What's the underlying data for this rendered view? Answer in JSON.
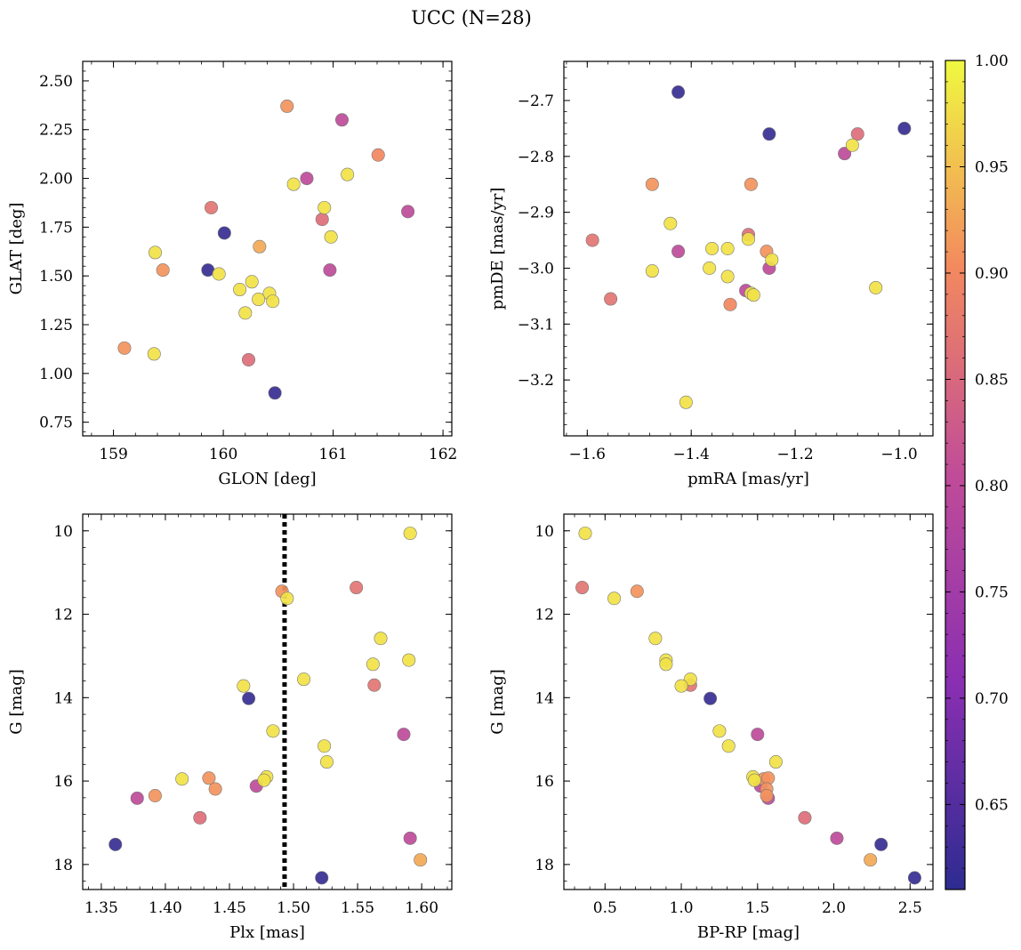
{
  "figure": {
    "title": "UCC (N=28)",
    "colors": {
      "palette": "plasma",
      "marker_edge": "#777777",
      "vline": "#000000"
    }
  },
  "colorbar": {
    "label": "",
    "range": [
      0.61,
      1.0
    ],
    "ticks": [
      0.65,
      0.7,
      0.75,
      0.8,
      0.85,
      0.9,
      0.95,
      1.0
    ],
    "tick_labels": [
      "0.65",
      "0.70",
      "0.75",
      "0.80",
      "0.85",
      "0.90",
      "0.95",
      "1.00"
    ]
  },
  "chart_data": [
    {
      "id": "glon-glat",
      "type": "scatter",
      "xlabel": "GLON [deg]",
      "ylabel": "GLAT [deg]",
      "xlim": [
        158.72,
        162.08
      ],
      "ylim": [
        0.68,
        2.6
      ],
      "invert_y": false,
      "xticks": [
        159,
        160,
        161,
        162
      ],
      "xtick_labels": [
        "159",
        "160",
        "161",
        "162"
      ],
      "yticks": [
        0.75,
        1.0,
        1.25,
        1.5,
        1.75,
        2.0,
        2.25,
        2.5
      ],
      "ytick_labels": [
        "0.75",
        "1.00",
        "1.25",
        "1.50",
        "1.75",
        "2.00",
        "2.25",
        "2.50"
      ],
      "x": [
        160.58,
        161.08,
        161.41,
        160.76,
        161.13,
        160.64,
        159.89,
        160.92,
        160.01,
        160.9,
        160.98,
        160.33,
        159.38,
        159.45,
        159.86,
        159.96,
        160.26,
        160.15,
        160.42,
        160.32,
        160.45,
        160.2,
        160.97,
        159.1,
        159.37,
        160.23,
        160.47,
        161.68
      ],
      "y": [
        2.37,
        2.3,
        2.12,
        2.0,
        2.02,
        1.97,
        1.85,
        1.85,
        1.72,
        1.79,
        1.7,
        1.65,
        1.62,
        1.53,
        1.53,
        1.51,
        1.47,
        1.43,
        1.41,
        1.38,
        1.37,
        1.31,
        1.53,
        1.13,
        1.1,
        1.07,
        0.9,
        1.83
      ],
      "c": [
        0.91,
        0.8,
        0.9,
        0.8,
        0.98,
        0.98,
        0.87,
        0.98,
        0.62,
        0.86,
        0.98,
        0.93,
        0.98,
        0.91,
        0.62,
        0.98,
        0.98,
        0.98,
        0.98,
        0.98,
        0.98,
        0.98,
        0.8,
        0.91,
        0.98,
        0.86,
        0.62,
        0.8
      ],
      "vline": null
    },
    {
      "id": "pmra-pmde",
      "type": "scatter",
      "xlabel": "pmRA [mas/yr]",
      "ylabel": "pmDE [mas/yr]",
      "xlim": [
        -1.645,
        -0.935
      ],
      "ylim": [
        -3.3,
        -2.63
      ],
      "invert_y": false,
      "xticks": [
        -1.6,
        -1.4,
        -1.2,
        -1.0
      ],
      "xtick_labels": [
        "−1.6",
        "−1.4",
        "−1.2",
        "−1.0"
      ],
      "yticks": [
        -3.2,
        -3.1,
        -3.0,
        -2.9,
        -2.8,
        -2.7
      ],
      "ytick_labels": [
        "−3.2",
        "−3.1",
        "−3.0",
        "−2.9",
        "−2.8",
        "−2.7"
      ],
      "x": [
        -1.425,
        -1.25,
        -0.99,
        -1.08,
        -1.09,
        -1.105,
        -1.475,
        -1.285,
        -1.59,
        -1.44,
        -1.425,
        -1.36,
        -1.33,
        -1.29,
        -1.255,
        -1.245,
        -1.365,
        -1.33,
        -1.475,
        -1.25,
        -1.045,
        -1.295,
        -1.285,
        -1.28,
        -1.325,
        -1.555,
        -1.41,
        -1.29
      ],
      "y": [
        -2.685,
        -2.76,
        -2.75,
        -2.76,
        -2.78,
        -2.795,
        -2.85,
        -2.85,
        -2.95,
        -2.92,
        -2.97,
        -2.965,
        -2.965,
        -2.94,
        -2.97,
        -2.985,
        -3.0,
        -3.015,
        -3.005,
        -3.0,
        -3.035,
        -3.04,
        -3.045,
        -3.048,
        -3.065,
        -3.055,
        -3.24,
        -2.948
      ],
      "c": [
        0.62,
        0.62,
        0.62,
        0.86,
        0.98,
        0.8,
        0.91,
        0.91,
        0.87,
        0.98,
        0.8,
        0.98,
        0.98,
        0.86,
        0.91,
        0.98,
        0.98,
        0.98,
        0.98,
        0.8,
        0.98,
        0.8,
        0.98,
        0.98,
        0.9,
        0.87,
        0.98,
        0.98
      ],
      "vline": null
    },
    {
      "id": "plx-g",
      "type": "scatter",
      "xlabel": "Plx [mas]",
      "ylabel": "G [mag]",
      "xlim": [
        1.3355,
        1.6235
      ],
      "ylim": [
        9.6,
        18.6
      ],
      "invert_y": true,
      "xticks": [
        1.35,
        1.4,
        1.45,
        1.5,
        1.55,
        1.6
      ],
      "xtick_labels": [
        "1.35",
        "1.40",
        "1.45",
        "1.50",
        "1.55",
        "1.60"
      ],
      "yticks": [
        10,
        12,
        14,
        16,
        18
      ],
      "ytick_labels": [
        "10",
        "12",
        "14",
        "16",
        "18"
      ],
      "x": [
        1.591,
        1.491,
        1.495,
        1.549,
        1.568,
        1.59,
        1.562,
        1.508,
        1.461,
        1.465,
        1.563,
        1.484,
        1.586,
        1.524,
        1.526,
        1.479,
        1.413,
        1.434,
        1.477,
        1.439,
        1.471,
        1.378,
        1.392,
        1.427,
        1.361,
        1.591,
        1.599,
        1.522
      ],
      "y": [
        10.06,
        11.45,
        11.62,
        11.36,
        12.58,
        13.1,
        13.2,
        13.56,
        13.72,
        14.02,
        13.7,
        14.8,
        14.88,
        15.16,
        15.54,
        15.9,
        15.95,
        15.93,
        15.98,
        16.19,
        16.12,
        16.41,
        16.35,
        16.88,
        17.52,
        17.37,
        17.89,
        18.32
      ],
      "c": [
        0.98,
        0.91,
        0.98,
        0.87,
        0.98,
        0.98,
        0.98,
        0.98,
        0.98,
        0.62,
        0.87,
        0.98,
        0.8,
        0.98,
        0.98,
        0.98,
        0.98,
        0.91,
        0.98,
        0.91,
        0.8,
        0.8,
        0.91,
        0.86,
        0.62,
        0.8,
        0.93,
        0.62
      ],
      "vline": 1.493
    },
    {
      "id": "bprp-g",
      "type": "scatter",
      "xlabel": "BP-RP [mag]",
      "ylabel": "G [mag]",
      "xlim": [
        0.23,
        2.65
      ],
      "ylim": [
        9.6,
        18.6
      ],
      "invert_y": true,
      "xticks": [
        0.5,
        1.0,
        1.5,
        2.0,
        2.5
      ],
      "xtick_labels": [
        "0.5",
        "1.0",
        "1.5",
        "2.0",
        "2.5"
      ],
      "yticks": [
        10,
        12,
        14,
        16,
        18
      ],
      "ytick_labels": [
        "10",
        "12",
        "14",
        "16",
        "18"
      ],
      "x": [
        0.37,
        0.35,
        0.56,
        0.71,
        0.83,
        0.9,
        0.9,
        1.06,
        1.0,
        1.06,
        1.19,
        1.25,
        1.31,
        1.5,
        1.62,
        1.47,
        1.48,
        1.54,
        1.57,
        1.52,
        1.56,
        1.56,
        1.57,
        1.81,
        2.02,
        2.31,
        2.24,
        2.53
      ],
      "y": [
        10.06,
        11.36,
        11.62,
        11.45,
        12.58,
        13.1,
        13.2,
        13.56,
        13.72,
        13.7,
        14.02,
        14.8,
        15.16,
        14.88,
        15.54,
        15.9,
        15.98,
        15.95,
        15.93,
        16.12,
        16.19,
        16.35,
        16.41,
        16.88,
        17.37,
        17.52,
        17.89,
        18.32
      ],
      "c": [
        0.98,
        0.87,
        0.98,
        0.91,
        0.98,
        0.98,
        0.98,
        0.98,
        0.98,
        0.87,
        0.62,
        0.98,
        0.98,
        0.8,
        0.98,
        0.98,
        0.98,
        0.91,
        0.91,
        0.8,
        0.91,
        0.91,
        0.8,
        0.86,
        0.8,
        0.62,
        0.93,
        0.62
      ],
      "vline": null
    }
  ]
}
